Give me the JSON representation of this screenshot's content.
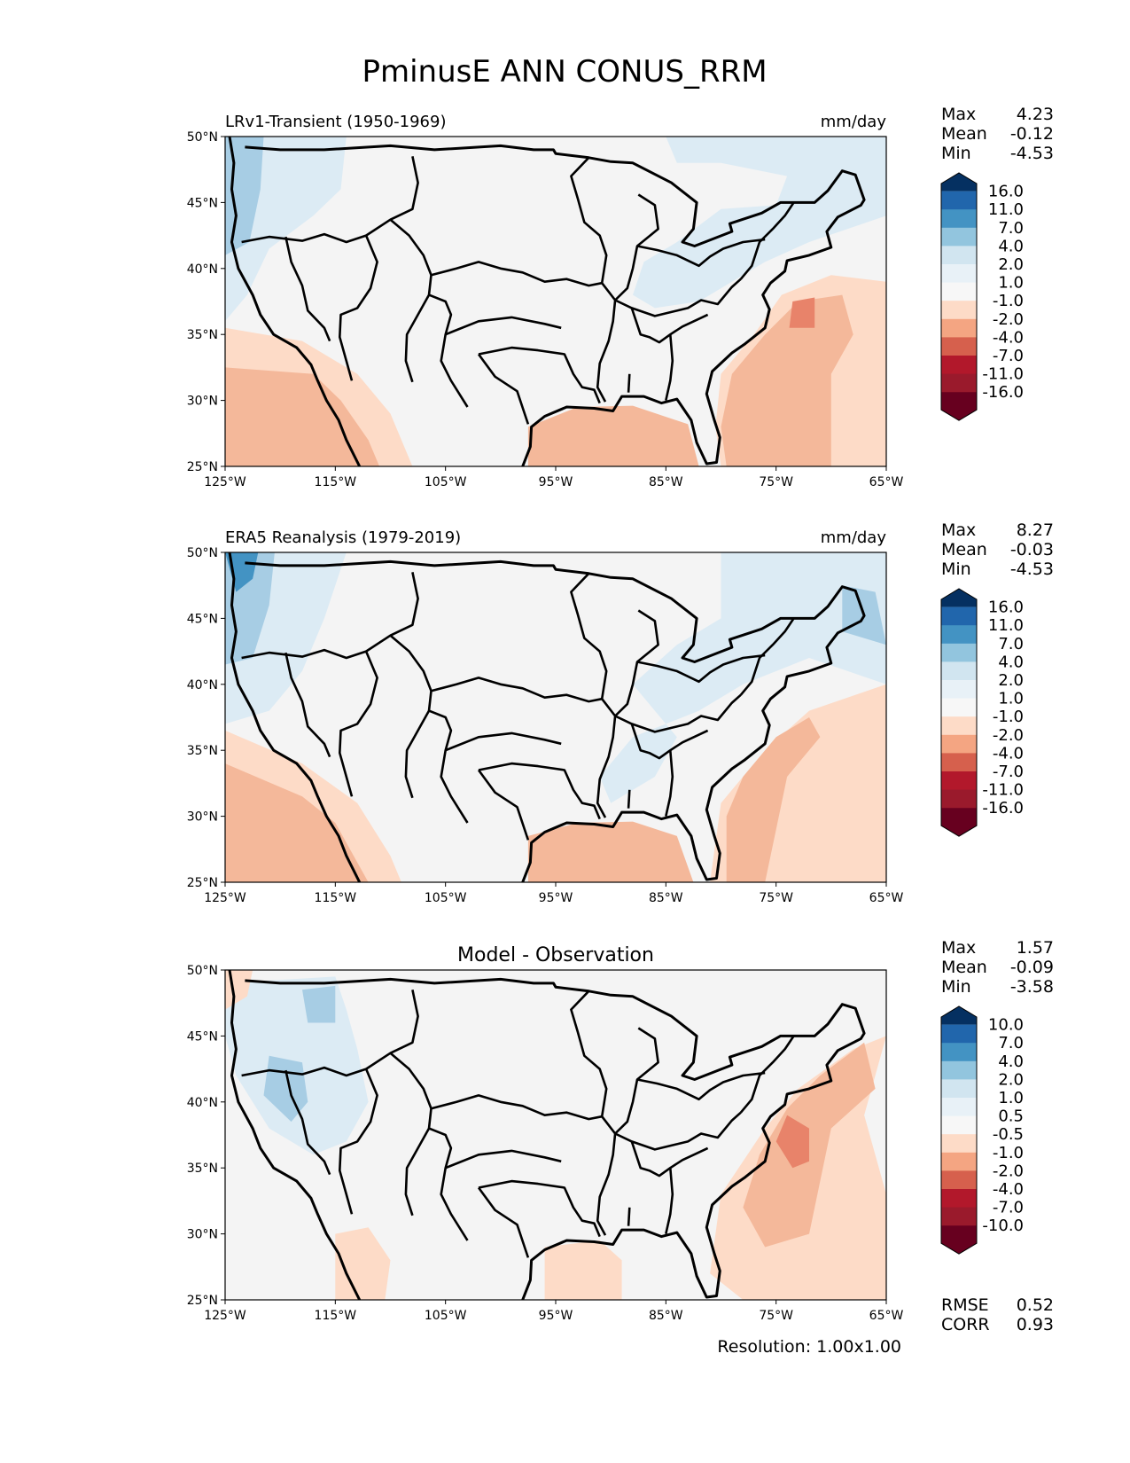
{
  "figure": {
    "title": "PminusE ANN CONUS_RRM",
    "resolution": "Resolution: 1.00x1.00"
  },
  "axes": {
    "lat_ticks": [
      "50°N",
      "45°N",
      "40°N",
      "35°N",
      "30°N",
      "25°N"
    ],
    "lon_ticks": [
      "125°W",
      "115°W",
      "105°W",
      "95°W",
      "85°W",
      "75°W",
      "65°W"
    ]
  },
  "colors": {
    "blues": [
      "#053061",
      "#2166ac",
      "#4393c3",
      "#92c5de",
      "#d1e5f0",
      "#f7f7f7"
    ],
    "reds": [
      "#fddbc7",
      "#f4a582",
      "#d6604d",
      "#b2182b",
      "#67001f"
    ],
    "sea_light": "#f4b89a",
    "sea_mid": "#e8836a",
    "land_light": "#dcebf4",
    "land_mid": "#a7cde4",
    "land_grey": "#f4f4f4"
  },
  "chart_data": [
    {
      "type": "heatmap",
      "title": "LRv1-Transient (1950-1969)",
      "units": "mm/day",
      "xlim": [
        -125,
        -65
      ],
      "ylim": [
        25,
        50
      ],
      "stats": {
        "max_label": "Max",
        "max": "4.23",
        "mean_label": "Mean",
        "mean": "-0.12",
        "min_label": "Min",
        "min": "-4.53"
      },
      "levels": [
        "16.0",
        "11.0",
        "7.0",
        "4.0",
        "2.0",
        "1.0",
        "-1.0",
        "-2.0",
        "-4.0",
        "-7.0",
        "-11.0",
        "-16.0"
      ]
    },
    {
      "type": "heatmap",
      "title": "ERA5 Reanalysis (1979-2019)",
      "units": "mm/day",
      "xlim": [
        -125,
        -65
      ],
      "ylim": [
        25,
        50
      ],
      "stats": {
        "max_label": "Max",
        "max": "8.27",
        "mean_label": "Mean",
        "mean": "-0.03",
        "min_label": "Min",
        "min": "-4.53"
      },
      "levels": [
        "16.0",
        "11.0",
        "7.0",
        "4.0",
        "2.0",
        "1.0",
        "-1.0",
        "-2.0",
        "-4.0",
        "-7.0",
        "-11.0",
        "-16.0"
      ]
    },
    {
      "type": "heatmap",
      "title": "Model - Observation",
      "units": "",
      "xlim": [
        -125,
        -65
      ],
      "ylim": [
        25,
        50
      ],
      "stats": {
        "max_label": "Max",
        "max": "1.57",
        "mean_label": "Mean",
        "mean": "-0.09",
        "min_label": "Min",
        "min": "-3.58"
      },
      "levels": [
        "10.0",
        "7.0",
        "4.0",
        "2.0",
        "1.0",
        "0.5",
        "-0.5",
        "-1.0",
        "-2.0",
        "-4.0",
        "-7.0",
        "-10.0"
      ],
      "rmse_label": "RMSE",
      "rmse": "0.52",
      "corr_label": "CORR",
      "corr": "0.93"
    }
  ]
}
